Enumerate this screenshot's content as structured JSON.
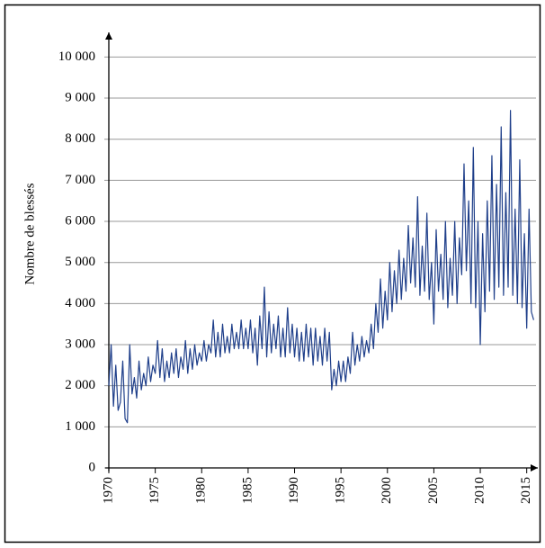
{
  "chart_data": {
    "type": "line",
    "ylabel": "Nombre de blessés",
    "xlim": [
      1970,
      2016
    ],
    "ylim": [
      0,
      10600
    ],
    "xticks": [
      1970,
      1975,
      1980,
      1985,
      1990,
      1995,
      2000,
      2005,
      2010,
      2015
    ],
    "yticks": [
      0,
      {
        "value": 1000,
        "label": "1 000"
      },
      {
        "value": 2000,
        "label": "2 000"
      },
      {
        "value": 3000,
        "label": "3 000"
      },
      {
        "value": 4000,
        "label": "4 000"
      },
      {
        "value": 5000,
        "label": "5 000"
      },
      {
        "value": 6000,
        "label": "6 000"
      },
      {
        "value": 7000,
        "label": "7 000"
      },
      {
        "value": 8000,
        "label": "8 000"
      },
      {
        "value": 9000,
        "label": "9 000"
      },
      {
        "value": 10000,
        "label": "10 000"
      }
    ],
    "grid": true,
    "series": [
      {
        "color": "#1f3f8a",
        "x": [
          1970,
          1970.25,
          1970.5,
          1970.75,
          1971,
          1971.25,
          1971.5,
          1971.75,
          1972,
          1972.25,
          1972.5,
          1972.75,
          1973,
          1973.25,
          1973.5,
          1973.75,
          1974,
          1974.25,
          1974.5,
          1974.75,
          1975,
          1975.25,
          1975.5,
          1975.75,
          1976,
          1976.25,
          1976.5,
          1976.75,
          1977,
          1977.25,
          1977.5,
          1977.75,
          1978,
          1978.25,
          1978.5,
          1978.75,
          1979,
          1979.25,
          1979.5,
          1979.75,
          1980,
          1980.25,
          1980.5,
          1980.75,
          1981,
          1981.25,
          1981.5,
          1981.75,
          1982,
          1982.25,
          1982.5,
          1982.75,
          1983,
          1983.25,
          1983.5,
          1983.75,
          1984,
          1984.25,
          1984.5,
          1984.75,
          1985,
          1985.25,
          1985.5,
          1985.75,
          1986,
          1986.25,
          1986.5,
          1986.75,
          1987,
          1987.25,
          1987.5,
          1987.75,
          1988,
          1988.25,
          1988.5,
          1988.75,
          1989,
          1989.25,
          1989.5,
          1989.75,
          1990,
          1990.25,
          1990.5,
          1990.75,
          1991,
          1991.25,
          1991.5,
          1991.75,
          1992,
          1992.25,
          1992.5,
          1992.75,
          1993,
          1993.25,
          1993.5,
          1993.75,
          1994,
          1994.25,
          1994.5,
          1994.75,
          1995,
          1995.25,
          1995.5,
          1995.75,
          1996,
          1996.25,
          1996.5,
          1996.75,
          1997,
          1997.25,
          1997.5,
          1997.75,
          1998,
          1998.25,
          1998.5,
          1998.75,
          1999,
          1999.25,
          1999.5,
          1999.75,
          2000,
          2000.25,
          2000.5,
          2000.75,
          2001,
          2001.25,
          2001.5,
          2001.75,
          2002,
          2002.25,
          2002.5,
          2002.75,
          2003,
          2003.25,
          2003.5,
          2003.75,
          2004,
          2004.25,
          2004.5,
          2004.75,
          2005,
          2005.25,
          2005.5,
          2005.75,
          2006,
          2006.25,
          2006.5,
          2006.75,
          2007,
          2007.25,
          2007.5,
          2007.75,
          2008,
          2008.25,
          2008.5,
          2008.75,
          2009,
          2009.25,
          2009.5,
          2009.75,
          2010,
          2010.25,
          2010.5,
          2010.75,
          2011,
          2011.25,
          2011.5,
          2011.75,
          2012,
          2012.25,
          2012.5,
          2012.75,
          2013,
          2013.25,
          2013.5,
          2013.75,
          2014,
          2014.25,
          2014.5,
          2014.75,
          2015,
          2015.25,
          2015.5,
          2015.75
        ],
        "values": [
          2000,
          3000,
          1500,
          2500,
          1400,
          1600,
          2600,
          1200,
          1100,
          3000,
          1800,
          2200,
          1700,
          2600,
          1900,
          2300,
          2000,
          2700,
          2100,
          2500,
          2300,
          3100,
          2200,
          2900,
          2100,
          2600,
          2200,
          2800,
          2300,
          2900,
          2200,
          2700,
          2400,
          3100,
          2300,
          2900,
          2400,
          3000,
          2500,
          2800,
          2600,
          3100,
          2600,
          3000,
          2800,
          3600,
          2700,
          3300,
          2700,
          3500,
          2800,
          3200,
          2800,
          3500,
          2900,
          3300,
          2900,
          3600,
          2900,
          3400,
          2900,
          3600,
          2800,
          3400,
          2500,
          3700,
          2900,
          4400,
          2700,
          3800,
          2800,
          3500,
          2900,
          3700,
          2700,
          3400,
          2700,
          3900,
          2800,
          3500,
          2700,
          3400,
          2600,
          3300,
          2600,
          3500,
          2700,
          3400,
          2500,
          3400,
          2600,
          3200,
          2500,
          3400,
          2600,
          3300,
          1900,
          2400,
          2000,
          2600,
          2100,
          2600,
          2100,
          2700,
          2300,
          3300,
          2500,
          3000,
          2600,
          3200,
          2700,
          3100,
          2800,
          3500,
          2900,
          4000,
          3300,
          4600,
          3400,
          4300,
          3600,
          5000,
          3800,
          4800,
          4000,
          5300,
          4100,
          5100,
          4300,
          5900,
          4500,
          5600,
          4400,
          6600,
          4200,
          5400,
          4300,
          6200,
          4100,
          5000,
          3500,
          5800,
          4300,
          5200,
          4100,
          6000,
          3900,
          5100,
          4200,
          6000,
          4000,
          5600,
          4700,
          7400,
          4800,
          6500,
          4000,
          7800,
          3900,
          6000,
          3000,
          5700,
          3800,
          6500,
          4300,
          7600,
          4100,
          6900,
          4400,
          8300,
          4200,
          6700,
          4400,
          8700,
          4200,
          6300,
          4000,
          7500,
          3900,
          5700,
          3400,
          6300,
          3800,
          3600
        ]
      }
    ]
  }
}
